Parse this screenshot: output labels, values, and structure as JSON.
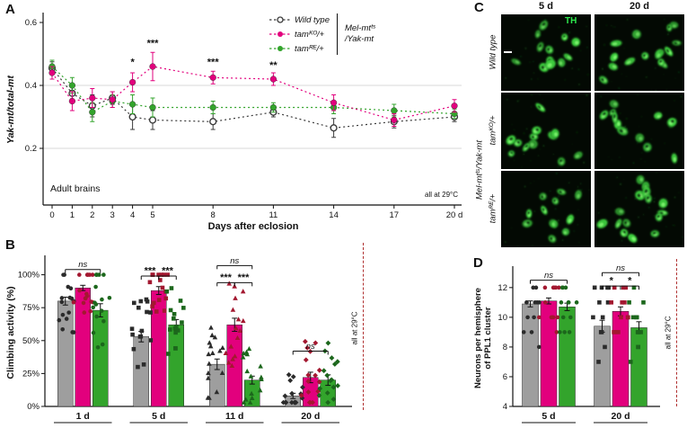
{
  "figure": {
    "panel_a_label": "A",
    "panel_b_label": "B",
    "panel_c_label": "C",
    "panel_d_label": "D"
  },
  "colors": {
    "wild_type_line": "#3b3b3b",
    "wild_type_bar": "#9e9e9e",
    "tam_ko_magenta": "#e2007d",
    "tam_re_green": "#33a42c",
    "dot_gray": "#2b2b2b",
    "dot_dark_red": "#a31830",
    "dot_dark_green": "#1c671c",
    "gridline": "#d8d8d8",
    "dashed_separator": "#b03030",
    "th_label_green": "#2eea4e",
    "micrograph_background": "#030903"
  },
  "panelA": {
    "ylabel": "Yak-mt/total-mt",
    "xlabel": "Days after eclosion",
    "corner_note": "Adult brains",
    "temp_note": "all at 29°C",
    "legend": {
      "items": [
        {
          "label": "Wild type"
        },
        {
          "label": "tamᴷᴼ/+"
        },
        {
          "label": "tamᴿᴱ/+"
        }
      ],
      "group_label_line1": "Mel-mtᵗˢ",
      "group_label_line2": "/Yak-mt"
    }
  },
  "panelB": {
    "ylabel": "Climbing activity (%)",
    "temp_note": "all at 29°C"
  },
  "panelC": {
    "col_headers": [
      "5 d",
      "20 d"
    ],
    "row_labels": [
      "Wild type",
      "tamᴷᴼ/+",
      "tamᴿᴱ/+"
    ],
    "side_label": "Mel-mtᵗˢ/Yak-mt",
    "stain_label": "TH"
  },
  "panelD": {
    "ylabel_line1": "Neurons per hemisphere",
    "ylabel_line2": "of PPL1 cluster",
    "temp_note": "all at 29°C"
  },
  "chart_data": [
    {
      "id": "A",
      "type": "line",
      "title": "",
      "xlabel": "Days after eclosion",
      "ylabel": "Yak-mt/total-mt",
      "x": [
        0,
        1,
        2,
        3,
        4,
        5,
        8,
        11,
        14,
        17,
        20
      ],
      "xtick_labels": [
        "0",
        "1",
        "2",
        "3",
        "4",
        "5",
        "8",
        "11",
        "14",
        "17",
        "20 d"
      ],
      "ylim": [
        0.02,
        0.62
      ],
      "yticks": [
        0.2,
        0.4,
        0.6
      ],
      "gridlines": [
        0.2,
        0.4
      ],
      "legend_position": "top-right",
      "grid": "horizontal-only",
      "series": [
        {
          "name": "Wild type",
          "color": "#3b3b3b",
          "marker": "open-circle",
          "values": [
            0.455,
            0.375,
            0.335,
            0.36,
            0.3,
            0.29,
            0.285,
            0.315,
            0.265,
            0.285,
            0.3
          ],
          "errors": [
            0.02,
            0.02,
            0.035,
            0.02,
            0.04,
            0.03,
            0.025,
            0.015,
            0.03,
            0.02,
            0.015
          ]
        },
        {
          "name": "tamᴷᴼ/+",
          "color": "#e2007d",
          "marker": "circle",
          "values": [
            0.44,
            0.35,
            0.36,
            0.355,
            0.41,
            0.46,
            0.425,
            0.42,
            0.345,
            0.29,
            0.335
          ],
          "errors": [
            0.02,
            0.03,
            0.03,
            0.025,
            0.03,
            0.045,
            0.02,
            0.02,
            0.025,
            0.02,
            0.02
          ]
        },
        {
          "name": "tamᴿᴱ/+",
          "color": "#33a42c",
          "marker": "circle",
          "values": [
            0.46,
            0.4,
            0.315,
            0.35,
            0.34,
            0.33,
            0.33,
            0.33,
            0.33,
            0.32,
            0.31
          ],
          "errors": [
            0.02,
            0.025,
            0.03,
            0.02,
            0.03,
            0.03,
            0.02,
            0.015,
            0.02,
            0.02,
            0.015
          ]
        }
      ],
      "significance": [
        {
          "x": 4,
          "y": 0.465,
          "label": "*"
        },
        {
          "x": 5,
          "y": 0.525,
          "label": "***"
        },
        {
          "x": 8,
          "y": 0.465,
          "label": "***"
        },
        {
          "x": 11,
          "y": 0.455,
          "label": "**"
        }
      ]
    },
    {
      "id": "B",
      "type": "bar",
      "ylabel": "Climbing activity (%)",
      "categories": [
        "1 d",
        "5 d",
        "11 d",
        "20 d"
      ],
      "ylim": [
        0,
        112
      ],
      "yticks": [
        0,
        25,
        50,
        75,
        100
      ],
      "ytick_labels": [
        "0%",
        "25%",
        "50%",
        "75%",
        "100%"
      ],
      "group_markers": [
        "circle",
        "square",
        "triangle",
        "diamond"
      ],
      "dots_per_bar": 16,
      "series": [
        {
          "name": "Wild type",
          "color": "#9e9e9e",
          "dot_color": "#2b2b2b",
          "values": [
            80,
            53,
            32,
            8
          ],
          "errors": [
            3,
            4,
            4,
            2
          ]
        },
        {
          "name": "tamᴷᴼ/+",
          "color": "#e2007d",
          "dot_color": "#a31830",
          "values": [
            90,
            88,
            62,
            22
          ],
          "errors": [
            2,
            3,
            5,
            4
          ]
        },
        {
          "name": "tamᴿᴱ/+",
          "color": "#33a42c",
          "dot_color": "#1c671c",
          "values": [
            73,
            62,
            20,
            20
          ],
          "errors": [
            5,
            4,
            3,
            4
          ]
        }
      ],
      "significance": [
        {
          "group": 0,
          "from": 0,
          "to": 2,
          "label": "ns",
          "y": 104
        },
        {
          "group": 1,
          "from": 0,
          "to": 1,
          "label": "***",
          "y": 99
        },
        {
          "group": 1,
          "from": 1,
          "to": 2,
          "label": "***",
          "y": 99
        },
        {
          "group": 2,
          "from": 0,
          "to": 2,
          "label": "ns",
          "y": 107
        },
        {
          "group": 2,
          "from": 0,
          "to": 1,
          "label": "***",
          "y": 94
        },
        {
          "group": 2,
          "from": 1,
          "to": 2,
          "label": "***",
          "y": 94
        },
        {
          "group": 3,
          "from": 0,
          "to": 2,
          "label": "ns",
          "y": 42
        }
      ]
    },
    {
      "id": "D",
      "type": "bar",
      "ylabel": "Neurons per hemisphere of PPL1 cluster",
      "categories": [
        "5 d",
        "20 d"
      ],
      "ylim": [
        4,
        13.2
      ],
      "yticks": [
        4,
        6,
        8,
        10,
        12
      ],
      "group_markers": [
        "circle",
        "square"
      ],
      "dots_per_bar": 12,
      "dots_integer": true,
      "series": [
        {
          "name": "Wild type",
          "color": "#9e9e9e",
          "dot_color": "#2b2b2b",
          "values": [
            10.9,
            9.4
          ],
          "errors": [
            0.2,
            0.4
          ]
        },
        {
          "name": "tamᴷᴼ/+",
          "color": "#e2007d",
          "dot_color": "#a31830",
          "values": [
            11.1,
            10.4
          ],
          "errors": [
            0.2,
            0.3
          ]
        },
        {
          "name": "tamᴿᴱ/+",
          "color": "#33a42c",
          "dot_color": "#1c671c",
          "values": [
            10.7,
            9.3
          ],
          "errors": [
            0.25,
            0.4
          ]
        }
      ],
      "significance": [
        {
          "group": 0,
          "from": 0,
          "to": 2,
          "label": "ns",
          "y": 12.5
        },
        {
          "group": 1,
          "from": 0,
          "to": 2,
          "label": "ns",
          "y": 13.0
        },
        {
          "group": 1,
          "from": 0,
          "to": 1,
          "label": "*",
          "y": 12.1
        },
        {
          "group": 1,
          "from": 1,
          "to": 2,
          "label": "*",
          "y": 12.1
        }
      ]
    }
  ]
}
